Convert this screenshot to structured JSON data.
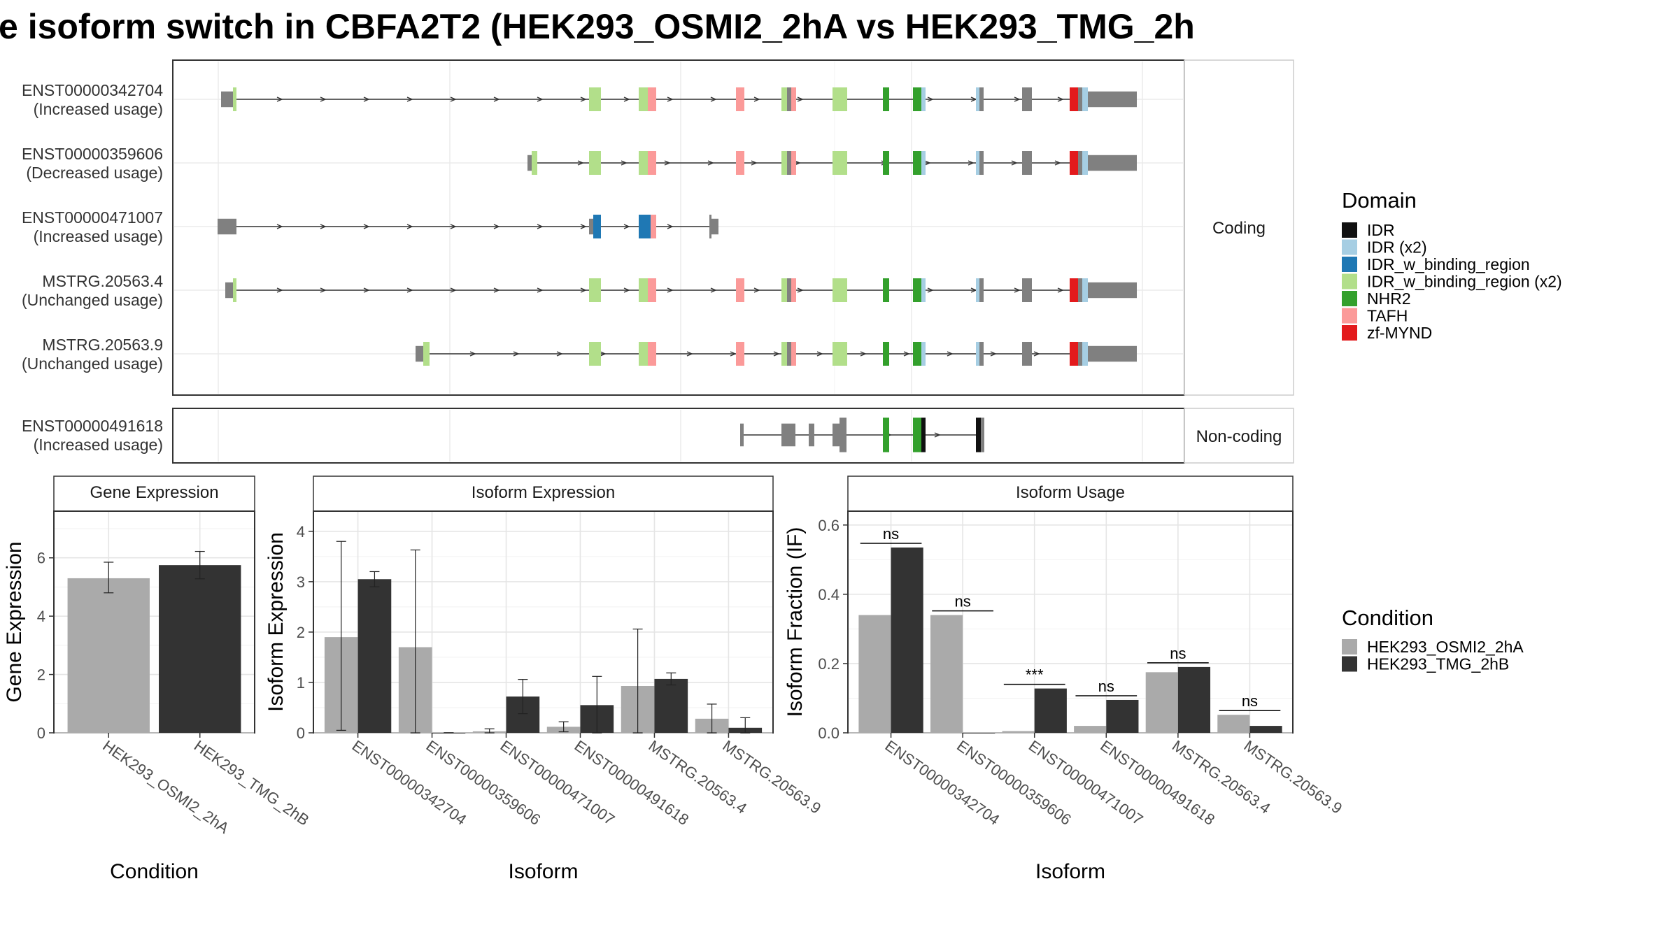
{
  "title": "e isoform switch in CBFA2T2 (HEK293_OSMI2_2hA vs HEK293_TMG_2h",
  "colors": {
    "exon": "#808080",
    "IDR": "#111111",
    "IDR (x2)": "#a6cee3",
    "IDR_w_binding_region": "#1f78b4",
    "IDR_w_binding_region (x2)": "#b2df8a",
    "NHR2": "#33a02c",
    "TAFH": "#fb9a99",
    "zf-MYND": "#e31a1c",
    "condA": "#aaaaaa",
    "condB": "#333333"
  },
  "chart_data": [
    {
      "type": "gene-structure",
      "facets": [
        "Coding",
        "Non-coding"
      ],
      "transcripts": [
        {
          "id": "ENST00000342704",
          "usage": "(Increased usage)",
          "facet": "Coding"
        },
        {
          "id": "ENST00000359606",
          "usage": "(Decreased usage)",
          "facet": "Coding"
        },
        {
          "id": "ENST00000471007",
          "usage": "(Increased usage)",
          "facet": "Coding"
        },
        {
          "id": "MSTRG.20563.4",
          "usage": "(Unchanged usage)",
          "facet": "Coding"
        },
        {
          "id": "MSTRG.20563.9",
          "usage": "(Unchanged usage)",
          "facet": "Coding"
        },
        {
          "id": "ENST00000491618",
          "usage": "(Increased usage)",
          "facet": "Non-coding"
        }
      ],
      "legend": {
        "title": "Domain",
        "items": [
          "IDR",
          "IDR (x2)",
          "IDR_w_binding_region",
          "IDR_w_binding_region (x2)",
          "NHR2",
          "TAFH",
          "zf-MYND"
        ]
      }
    },
    {
      "type": "bar",
      "title": "Gene Expression",
      "xlabel": "Condition",
      "ylabel": "Gene Expression",
      "ylim": [
        0,
        7.6
      ],
      "yticks": [
        0,
        2,
        4,
        6
      ],
      "categories": [
        "HEK293_OSMI2_2hA",
        "HEK293_TMG_2hB"
      ],
      "values": [
        5.3,
        5.75
      ],
      "errors": [
        [
          4.8,
          5.85
        ],
        [
          5.28,
          6.22
        ]
      ]
    },
    {
      "type": "bar",
      "title": "Isoform Expression",
      "xlabel": "Isoform",
      "ylabel": "Isoform Expression",
      "ylim": [
        0,
        4.4
      ],
      "yticks": [
        0,
        1,
        2,
        3,
        4
      ],
      "categories": [
        "ENST00000342704",
        "ENST00000359606",
        "ENST00000471007",
        "ENST00000491618",
        "MSTRG.20563.4",
        "MSTRG.20563.9"
      ],
      "series": [
        {
          "name": "HEK293_OSMI2_2hA",
          "values": [
            1.9,
            1.7,
            0.03,
            0.12,
            0.93,
            0.28
          ],
          "errors": [
            [
              0.05,
              3.8
            ],
            [
              0.0,
              3.63
            ],
            [
              0.0,
              0.08
            ],
            [
              0.02,
              0.22
            ],
            [
              0.0,
              2.06
            ],
            [
              0.0,
              0.57
            ]
          ]
        },
        {
          "name": "HEK293_TMG_2hB",
          "values": [
            3.05,
            0.0,
            0.72,
            0.55,
            1.07,
            0.1
          ],
          "errors": [
            [
              2.9,
              3.2
            ],
            [
              0.0,
              0.0
            ],
            [
              0.38,
              1.06
            ],
            [
              0.0,
              1.12
            ],
            [
              0.95,
              1.19
            ],
            [
              0.0,
              0.3
            ]
          ]
        }
      ]
    },
    {
      "type": "bar",
      "title": "Isoform Usage",
      "xlabel": "Isoform",
      "ylabel": "Isoform Fraction (IF)",
      "ylim": [
        0,
        0.64
      ],
      "yticks": [
        0.0,
        0.2,
        0.4,
        0.6
      ],
      "ytick_labels": [
        "0.0",
        "0.2",
        "0.4",
        "0.6"
      ],
      "categories": [
        "ENST00000342704",
        "ENST00000359606",
        "ENST00000471007",
        "ENST00000491618",
        "MSTRG.20563.4",
        "MSTRG.20563.9"
      ],
      "series": [
        {
          "name": "HEK293_OSMI2_2hA",
          "values": [
            0.34,
            0.34,
            0.005,
            0.02,
            0.175,
            0.052
          ]
        },
        {
          "name": "HEK293_TMG_2hB",
          "values": [
            0.535,
            0.0,
            0.128,
            0.095,
            0.19,
            0.02
          ]
        }
      ],
      "significance": [
        "ns",
        "ns",
        "***",
        "ns",
        "ns",
        "ns"
      ]
    }
  ],
  "condition_legend": {
    "title": "Condition",
    "items": [
      "HEK293_OSMI2_2hA",
      "HEK293_TMG_2hB"
    ]
  }
}
